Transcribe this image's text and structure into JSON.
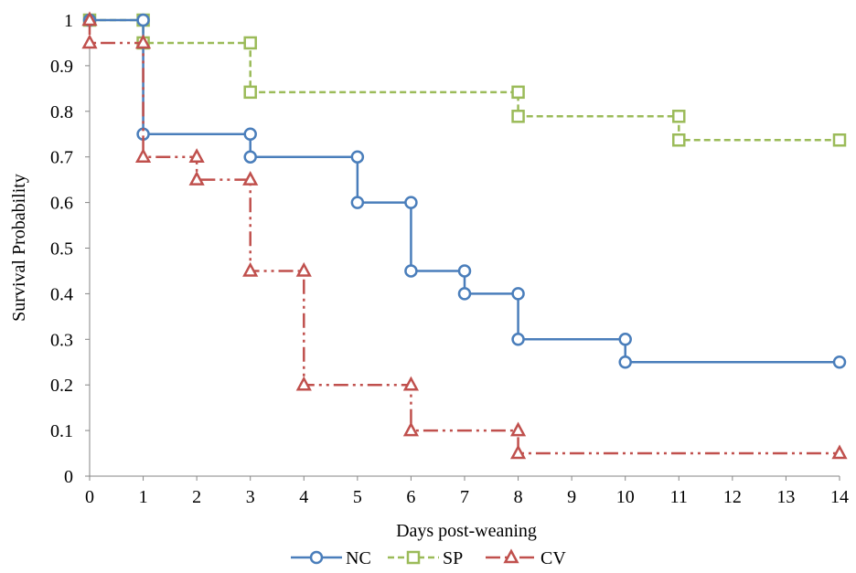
{
  "chart_data": {
    "type": "line",
    "step": true,
    "title": "",
    "xlabel": "Days post-weaning",
    "ylabel": "Survival Probability",
    "xlim": [
      0,
      14
    ],
    "ylim": [
      0,
      1
    ],
    "xticks": [
      0,
      1,
      2,
      3,
      4,
      5,
      6,
      7,
      8,
      9,
      10,
      11,
      12,
      13,
      14
    ],
    "yticks": [
      0,
      0.1,
      0.2,
      0.3,
      0.4,
      0.5,
      0.6,
      0.7,
      0.8,
      0.9,
      1
    ],
    "xtick_labels": [
      "0",
      "1",
      "2",
      "3",
      "4",
      "5",
      "6",
      "7",
      "8",
      "9",
      "10",
      "11",
      "12",
      "13",
      "14"
    ],
    "ytick_labels": [
      "0",
      "0.1",
      "0.2",
      "0.3",
      "0.4",
      "0.5",
      "0.6",
      "0.7",
      "0.8",
      "0.9",
      "1"
    ],
    "grid": false,
    "legend_position": "bottom",
    "series": [
      {
        "name": "NC",
        "color": "#4a7ebb",
        "marker": "circle",
        "line_style": "solid",
        "points": [
          [
            0,
            1
          ],
          [
            1,
            1
          ],
          [
            1,
            0.75
          ],
          [
            3,
            0.75
          ],
          [
            3,
            0.7
          ],
          [
            5,
            0.7
          ],
          [
            5,
            0.6
          ],
          [
            6,
            0.6
          ],
          [
            6,
            0.45
          ],
          [
            7,
            0.45
          ],
          [
            7,
            0.4
          ],
          [
            8,
            0.4
          ],
          [
            8,
            0.3
          ],
          [
            10,
            0.3
          ],
          [
            10,
            0.25
          ],
          [
            14,
            0.25
          ]
        ]
      },
      {
        "name": "SP",
        "color": "#9bbb59",
        "marker": "square",
        "line_style": "dash",
        "points": [
          [
            0,
            1
          ],
          [
            1,
            1
          ],
          [
            1,
            0.95
          ],
          [
            3,
            0.95
          ],
          [
            3,
            0.842
          ],
          [
            8,
            0.842
          ],
          [
            8,
            0.789
          ],
          [
            11,
            0.789
          ],
          [
            11,
            0.737
          ],
          [
            14,
            0.737
          ]
        ]
      },
      {
        "name": "CV",
        "color": "#c0504d",
        "marker": "triangle",
        "line_style": "dashdotdot",
        "points": [
          [
            0,
            1
          ],
          [
            0,
            0.95
          ],
          [
            1,
            0.95
          ],
          [
            1,
            0.7
          ],
          [
            2,
            0.7
          ],
          [
            2,
            0.65
          ],
          [
            3,
            0.65
          ],
          [
            3,
            0.45
          ],
          [
            4,
            0.45
          ],
          [
            4,
            0.2
          ],
          [
            6,
            0.2
          ],
          [
            6,
            0.1
          ],
          [
            8,
            0.1
          ],
          [
            8,
            0.05
          ],
          [
            14,
            0.05
          ]
        ]
      }
    ]
  }
}
